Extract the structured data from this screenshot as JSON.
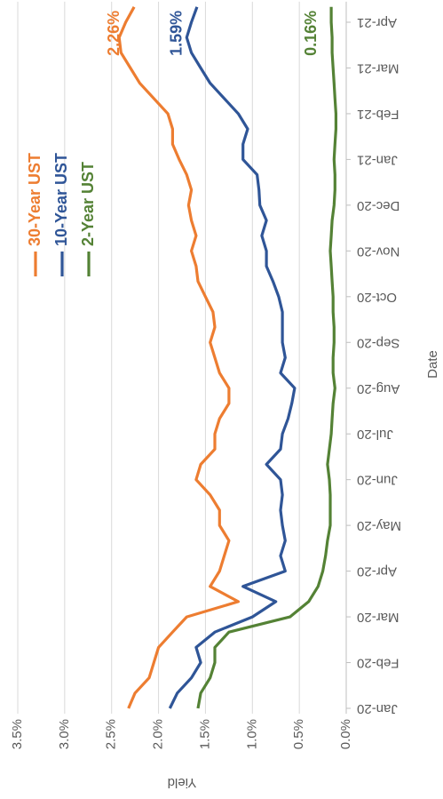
{
  "chart_data": {
    "type": "line",
    "categories": [
      "Jan-20",
      null,
      null,
      "Feb-20",
      null,
      null,
      "Mar-20",
      null,
      null,
      "Apr-20",
      null,
      null,
      "May-20",
      null,
      null,
      "Jun-20",
      null,
      null,
      "Jul-20",
      null,
      null,
      "Aug-20",
      null,
      null,
      "Sep-20",
      null,
      null,
      "Oct-20",
      null,
      null,
      "Nov-20",
      null,
      null,
      "Dec-20",
      null,
      null,
      "Jan-21",
      null,
      null,
      "Feb-21",
      null,
      null,
      "Mar-21",
      null,
      null,
      "Apr-21",
      null
    ],
    "series": [
      {
        "name": "30-Year UST",
        "color": "#ed7d31",
        "values": [
          2.32,
          2.25,
          2.1,
          2.05,
          2.0,
          1.85,
          1.7,
          1.15,
          1.45,
          1.35,
          1.3,
          1.25,
          1.35,
          1.35,
          1.45,
          1.6,
          1.55,
          1.4,
          1.4,
          1.35,
          1.25,
          1.25,
          1.35,
          1.4,
          1.45,
          1.4,
          1.42,
          1.5,
          1.58,
          1.6,
          1.65,
          1.6,
          1.65,
          1.68,
          1.65,
          1.7,
          1.78,
          1.85,
          1.85,
          1.9,
          2.05,
          2.2,
          2.3,
          2.4,
          2.42,
          2.35,
          2.26
        ],
        "value_labels": [
          null,
          null,
          null,
          null,
          null,
          null,
          null,
          null,
          null,
          null,
          null,
          null,
          null,
          null,
          null,
          null,
          null,
          null,
          null,
          null,
          null,
          null,
          null,
          null,
          null,
          null,
          null,
          null,
          null,
          null,
          null,
          null,
          null,
          null,
          null,
          null,
          null,
          null,
          null,
          null,
          null,
          null,
          null,
          null,
          null,
          null,
          "2.26%"
        ]
      },
      {
        "name": "10-Year UST",
        "color": "#2f5597",
        "values": [
          1.88,
          1.8,
          1.65,
          1.55,
          1.6,
          1.4,
          1.0,
          0.75,
          1.1,
          0.65,
          0.7,
          0.65,
          0.68,
          0.7,
          0.68,
          0.7,
          0.85,
          0.7,
          0.68,
          0.62,
          0.58,
          0.55,
          0.7,
          0.65,
          0.68,
          0.68,
          0.68,
          0.72,
          0.78,
          0.85,
          0.85,
          0.9,
          0.85,
          0.92,
          0.93,
          0.95,
          1.1,
          1.1,
          1.05,
          1.15,
          1.3,
          1.45,
          1.55,
          1.65,
          1.7,
          1.65,
          1.59
        ],
        "value_labels": [
          null,
          null,
          null,
          null,
          null,
          null,
          null,
          null,
          null,
          null,
          null,
          null,
          null,
          null,
          null,
          null,
          null,
          null,
          null,
          null,
          null,
          null,
          null,
          null,
          null,
          null,
          null,
          null,
          null,
          null,
          null,
          null,
          null,
          null,
          null,
          null,
          null,
          null,
          null,
          null,
          null,
          null,
          null,
          null,
          null,
          null,
          "1.59%"
        ]
      },
      {
        "name": "2-Year UST",
        "color": "#548235",
        "values": [
          1.58,
          1.55,
          1.45,
          1.4,
          1.4,
          1.25,
          0.6,
          0.4,
          0.3,
          0.25,
          0.22,
          0.2,
          0.17,
          0.17,
          0.17,
          0.18,
          0.2,
          0.18,
          0.16,
          0.15,
          0.14,
          0.12,
          0.14,
          0.14,
          0.13,
          0.13,
          0.14,
          0.14,
          0.15,
          0.16,
          0.17,
          0.16,
          0.15,
          0.13,
          0.12,
          0.12,
          0.13,
          0.12,
          0.11,
          0.11,
          0.12,
          0.13,
          0.14,
          0.15,
          0.15,
          0.16,
          0.16
        ],
        "value_labels": [
          null,
          null,
          null,
          null,
          null,
          null,
          null,
          null,
          null,
          null,
          null,
          null,
          null,
          null,
          null,
          null,
          null,
          null,
          null,
          null,
          null,
          null,
          null,
          null,
          null,
          null,
          null,
          null,
          null,
          null,
          null,
          null,
          null,
          null,
          null,
          null,
          null,
          null,
          null,
          null,
          null,
          null,
          null,
          null,
          null,
          null,
          "0.16%"
        ]
      }
    ],
    "ylim": [
      0,
      3.5
    ],
    "yticks": [
      {
        "value": 0,
        "label": "0.0%"
      },
      {
        "value": 0.5,
        "label": "0.5%"
      },
      {
        "value": 1,
        "label": "1.0%"
      },
      {
        "value": 1.5,
        "label": "1.5%"
      },
      {
        "value": 2,
        "label": "2.0%"
      },
      {
        "value": 2.5,
        "label": "2.5%"
      },
      {
        "value": 3,
        "label": "3.0%"
      },
      {
        "value": 3.5,
        "label": "3.5%"
      }
    ],
    "x_label": "Date",
    "y_label": "Yield",
    "grid": true,
    "legend": "top-right"
  }
}
